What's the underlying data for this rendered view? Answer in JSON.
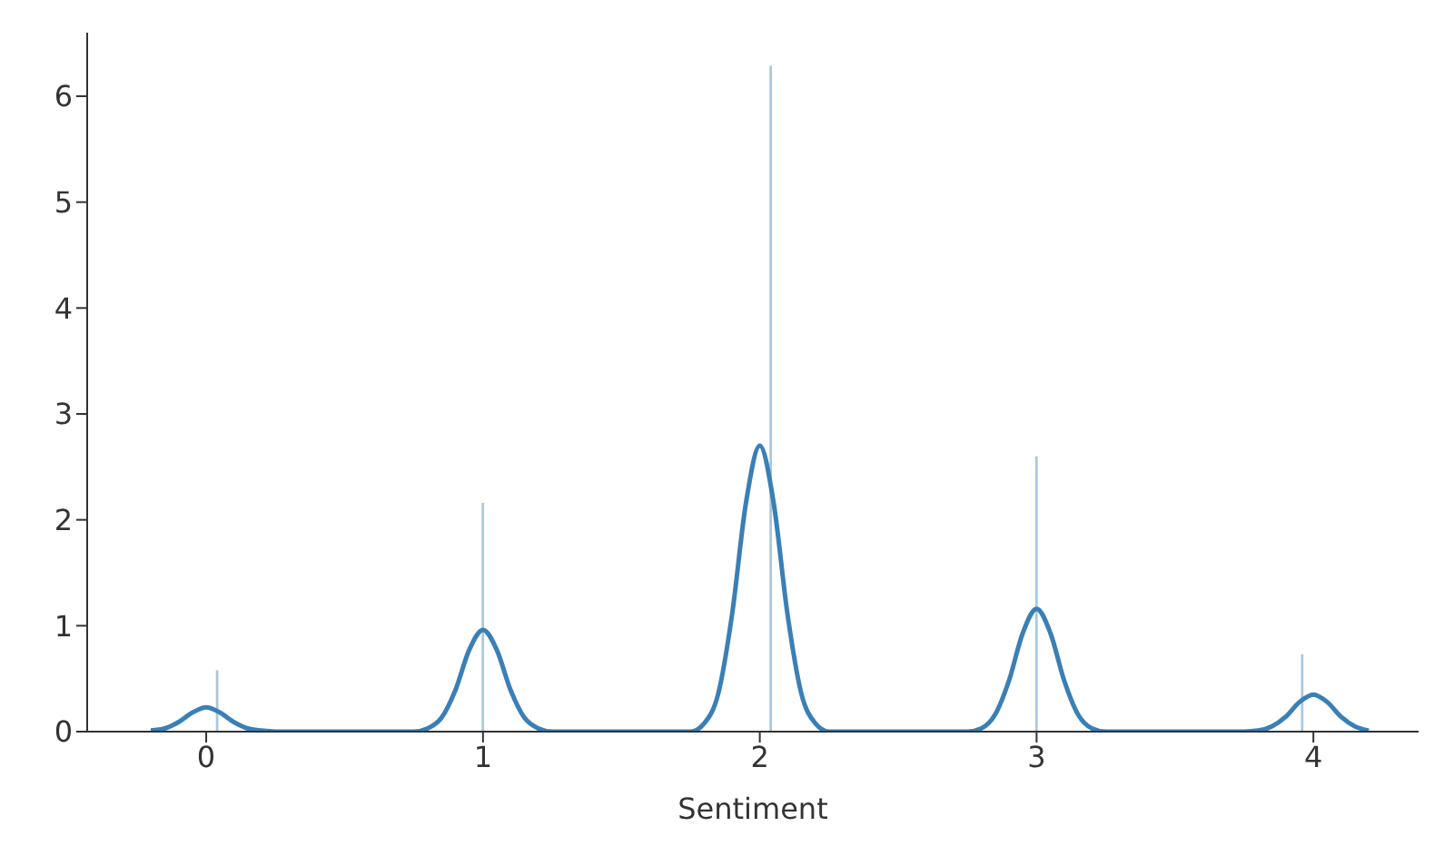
{
  "chart_data": {
    "type": "histogram",
    "xlabel": "Sentiment",
    "bins": [
      0,
      0.08,
      0.16,
      0.24,
      0.32,
      0.4,
      0.48,
      0.56,
      0.64,
      0.72,
      0.8,
      0.88,
      0.96,
      1.04,
      1.12,
      1.2,
      1.28,
      1.36,
      1.44,
      1.52,
      1.6,
      1.68,
      1.76,
      1.84,
      1.92,
      2,
      2.08,
      2.16,
      2.24,
      2.32,
      2.4,
      2.48,
      2.56,
      2.64,
      2.72,
      2.8,
      2.88,
      2.96,
      3.04,
      3.12,
      3.2,
      3.28,
      3.36,
      3.44,
      3.52,
      3.6,
      3.68,
      3.76,
      3.84,
      3.92,
      4
    ],
    "values": [
      0.58,
      0,
      0,
      0,
      0,
      0,
      0,
      0,
      0,
      0,
      0,
      0,
      2.16,
      0,
      0,
      0,
      0,
      0,
      0,
      0,
      0,
      0,
      0,
      0,
      0,
      6.29,
      0,
      0,
      0,
      0,
      0,
      0,
      0,
      0,
      0,
      0,
      0,
      2.6,
      0,
      0,
      0,
      0,
      0,
      0,
      0,
      0,
      0,
      0,
      0,
      0.73
    ],
    "color": "#a6c8e0",
    "series": [
      {
        "type": "line",
        "color": "#3a7fb5",
        "x": [
          -0.2,
          -0.15,
          -0.1,
          -0.05,
          0,
          0.05,
          0.1,
          0.15,
          0.2,
          0.25,
          0.5,
          0.75,
          0.8,
          0.85,
          0.9,
          0.95,
          1,
          1.05,
          1.1,
          1.15,
          1.2,
          1.25,
          1.5,
          1.75,
          1.8,
          1.85,
          1.9,
          1.95,
          2,
          2.05,
          2.1,
          2.15,
          2.2,
          2.25,
          2.5,
          2.75,
          2.8,
          2.85,
          2.9,
          2.95,
          3,
          3.05,
          3.1,
          3.15,
          3.2,
          3.25,
          3.5,
          3.75,
          3.8,
          3.85,
          3.9,
          3.95,
          4,
          4.05,
          4.1,
          4.15,
          4.2
        ],
        "values": [
          0.01,
          0.03,
          0.09,
          0.18,
          0.23,
          0.18,
          0.09,
          0.03,
          0.01,
          0,
          0,
          0,
          0.03,
          0.13,
          0.39,
          0.77,
          0.96,
          0.77,
          0.39,
          0.13,
          0.03,
          0,
          0,
          0,
          0.08,
          0.36,
          1.11,
          2.16,
          2.7,
          2.16,
          1.11,
          0.36,
          0.08,
          0,
          0,
          0,
          0.03,
          0.16,
          0.48,
          0.93,
          1.16,
          0.93,
          0.48,
          0.16,
          0.03,
          0,
          0,
          0,
          0.01,
          0.05,
          0.14,
          0.28,
          0.35,
          0.28,
          0.14,
          0.05,
          0.01
        ]
      }
    ],
    "xlim": [
      -0.43,
      4.38
    ],
    "xticks": [
      0,
      1,
      2,
      3,
      4
    ],
    "ylim": [
      0,
      6.6
    ],
    "yticks": [
      0,
      1,
      2,
      3,
      4,
      5,
      6
    ],
    "grid": false,
    "legend": false
  }
}
